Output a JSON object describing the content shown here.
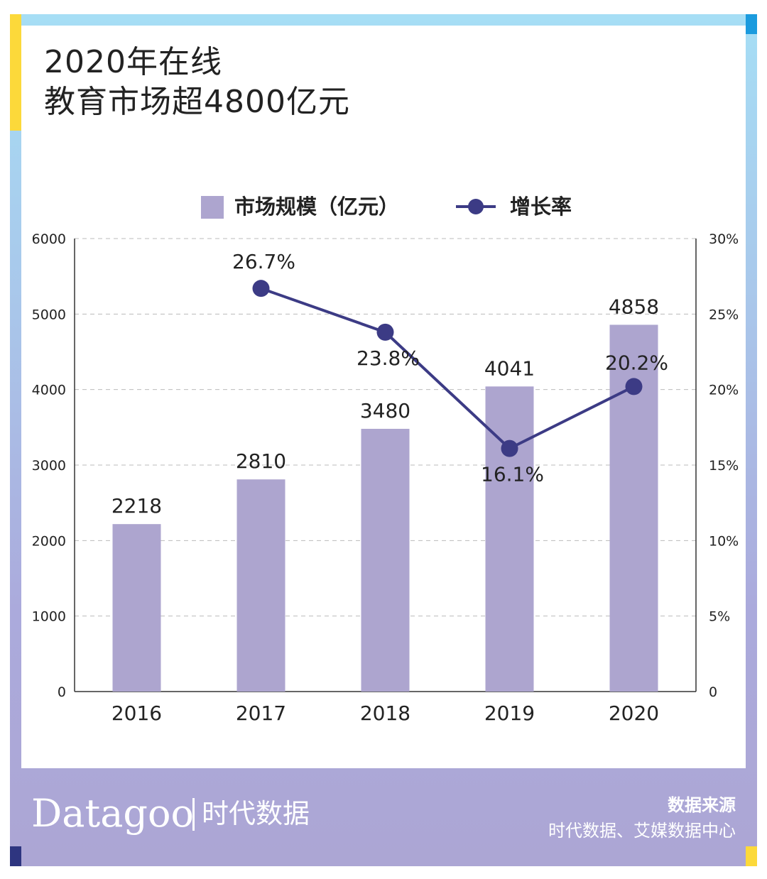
{
  "title": {
    "line1": "2020年在线",
    "line2": "教育市场超4800亿元"
  },
  "legend": {
    "bar_label": "市场规模（亿元）",
    "line_label": "增长率"
  },
  "colors": {
    "bar": "#ada5cf",
    "line": "#3c3b85",
    "grid": "#bbbbbb",
    "axis": "#333333"
  },
  "chart_data": {
    "type": "bar+line",
    "categories": [
      "2016",
      "2017",
      "2018",
      "2019",
      "2020"
    ],
    "series": [
      {
        "name": "市场规模（亿元）",
        "axis": "left",
        "type": "bar",
        "values": [
          2218,
          2810,
          3480,
          4041,
          4858
        ],
        "labels": [
          "2218",
          "2810",
          "3480",
          "4041",
          "4858"
        ]
      },
      {
        "name": "增长率",
        "axis": "right",
        "type": "line",
        "values": [
          null,
          26.7,
          23.8,
          16.1,
          20.2
        ],
        "labels": [
          "",
          "26.7%",
          "23.8%",
          "16.1%",
          "20.2%"
        ]
      }
    ],
    "left_axis": {
      "min": 0,
      "max": 6000,
      "ticks": [
        "0",
        "1000",
        "2000",
        "3000",
        "4000",
        "5000",
        "6000"
      ]
    },
    "right_axis": {
      "min": 0,
      "max": 30,
      "ticks": [
        "0",
        "5%",
        "10%",
        "15%",
        "20%",
        "25%",
        "30%"
      ]
    },
    "grid": true
  },
  "footer": {
    "logo": "Datagoo",
    "brand": "时代数据",
    "source_title": "数据来源",
    "source_body": "时代数据、艾媒数据中心"
  }
}
